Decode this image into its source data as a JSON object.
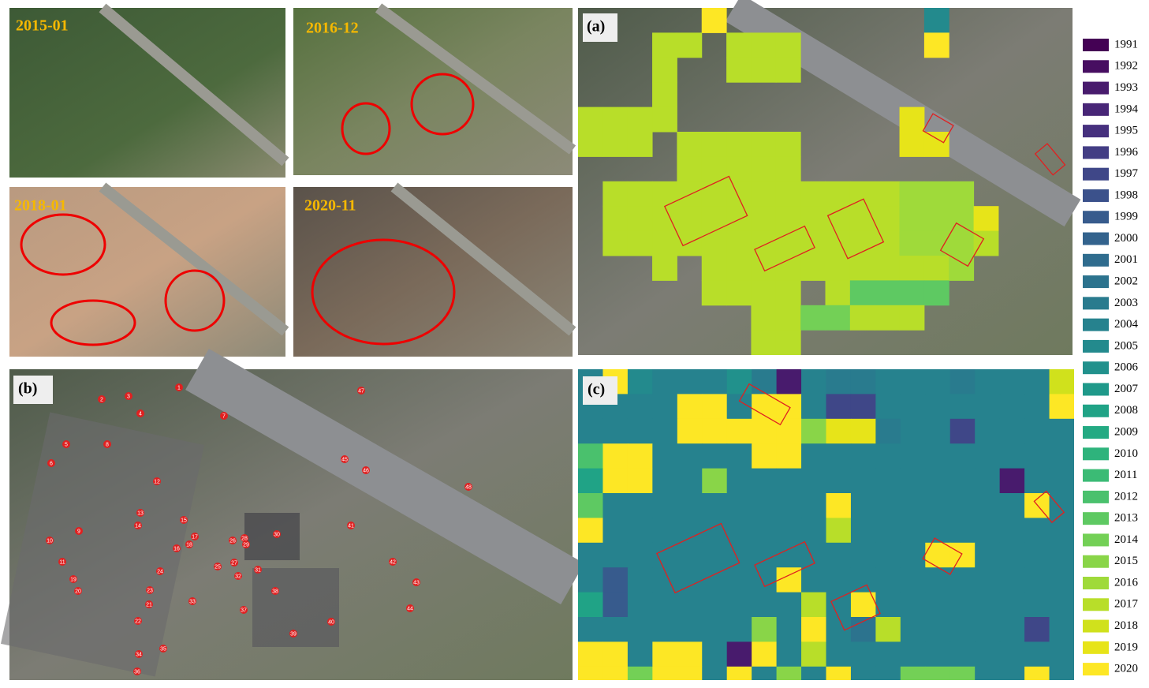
{
  "photos": [
    {
      "label": "2015-01"
    },
    {
      "label": "2016-12"
    },
    {
      "label": "2018-01"
    },
    {
      "label": "2020-11"
    }
  ],
  "panels": {
    "a": {
      "label": "(a)",
      "grid": [
        [
          null,
          null,
          null,
          null,
          null,
          2020,
          null,
          null,
          null,
          null,
          null,
          null,
          null,
          null,
          2005,
          null,
          null,
          null,
          null,
          null
        ],
        [
          null,
          null,
          null,
          2017,
          2017,
          null,
          2017,
          2017,
          2017,
          null,
          null,
          null,
          null,
          null,
          2020,
          null,
          null,
          null,
          null,
          null
        ],
        [
          null,
          null,
          null,
          2017,
          null,
          null,
          2017,
          2017,
          2017,
          null,
          null,
          null,
          null,
          null,
          null,
          null,
          null,
          null,
          null,
          null
        ],
        [
          null,
          null,
          null,
          2017,
          null,
          null,
          null,
          null,
          null,
          null,
          null,
          null,
          null,
          null,
          null,
          null,
          null,
          null,
          null,
          null
        ],
        [
          2017,
          2017,
          2017,
          2017,
          null,
          null,
          null,
          null,
          null,
          null,
          null,
          null,
          null,
          2019,
          null,
          null,
          null,
          null,
          null,
          null
        ],
        [
          2017,
          2017,
          2017,
          null,
          2017,
          2017,
          2017,
          2017,
          2017,
          null,
          null,
          null,
          null,
          2019,
          2019,
          null,
          null,
          null,
          null,
          null
        ],
        [
          null,
          null,
          null,
          null,
          2017,
          2017,
          2017,
          2017,
          2017,
          null,
          null,
          null,
          null,
          null,
          null,
          null,
          null,
          null,
          null,
          null
        ],
        [
          null,
          2017,
          2017,
          2017,
          2017,
          2017,
          2017,
          2017,
          2017,
          2017,
          2017,
          2017,
          2017,
          2016,
          2016,
          2016,
          null,
          null,
          null,
          null
        ],
        [
          null,
          2017,
          2017,
          2017,
          2017,
          2017,
          2017,
          2017,
          2017,
          2017,
          2017,
          2017,
          2017,
          2016,
          2016,
          2016,
          2019,
          null,
          null,
          null
        ],
        [
          null,
          2017,
          2017,
          2017,
          2017,
          2017,
          2017,
          2017,
          2017,
          2017,
          2017,
          2017,
          2017,
          2016,
          2016,
          2016,
          2017,
          null,
          null,
          null
        ],
        [
          null,
          null,
          null,
          2017,
          null,
          2017,
          2017,
          2017,
          2017,
          2017,
          2017,
          2017,
          2017,
          2017,
          2017,
          2016,
          null,
          null,
          null,
          null
        ],
        [
          null,
          null,
          null,
          null,
          null,
          2017,
          2017,
          2017,
          2017,
          null,
          2017,
          2013,
          2013,
          2013,
          2013,
          null,
          null,
          null,
          null,
          null
        ],
        [
          null,
          null,
          null,
          null,
          null,
          null,
          null,
          2017,
          2017,
          2014,
          2014,
          2017,
          2017,
          2017,
          null,
          null,
          null,
          null,
          null,
          null
        ],
        [
          null,
          null,
          null,
          null,
          null,
          null,
          null,
          2017,
          2017,
          null,
          null,
          null,
          null,
          null,
          null,
          null,
          null,
          null,
          null,
          null
        ]
      ]
    },
    "b": {
      "label": "(b)",
      "markers": [
        "1",
        "2",
        "3",
        "4",
        "5",
        "6",
        "7",
        "8",
        "9",
        "10",
        "11",
        "12",
        "13",
        "14",
        "15",
        "16",
        "17",
        "18",
        "19",
        "20",
        "21",
        "22",
        "23",
        "24",
        "25",
        "26",
        "27",
        "28",
        "29",
        "30",
        "31",
        "32",
        "33",
        "34",
        "35",
        "36",
        "37",
        "38",
        "39",
        "40",
        "41",
        "42",
        "43",
        "44",
        "45",
        "46",
        "47",
        "48"
      ]
    },
    "c": {
      "label": "(c)",
      "grid": [
        [
          2004,
          2020,
          2005,
          2004,
          2004,
          2004,
          2006,
          2003,
          1993,
          2004,
          2003,
          2003,
          2004,
          2004,
          2004,
          2003,
          2004,
          2004,
          2004,
          2018
        ],
        [
          2004,
          2004,
          2004,
          2004,
          2020,
          2020,
          2004,
          2020,
          2020,
          2004,
          1997,
          1997,
          2004,
          2004,
          2004,
          2004,
          2004,
          2004,
          2004,
          2020
        ],
        [
          2004,
          2004,
          2004,
          2004,
          2020,
          2020,
          2020,
          2020,
          2020,
          2015,
          2019,
          2019,
          2003,
          2004,
          2004,
          1997,
          2004,
          2004,
          2004,
          2004
        ],
        [
          2012,
          2020,
          2020,
          2004,
          2004,
          2004,
          2004,
          2020,
          2020,
          2004,
          2004,
          2004,
          2004,
          2004,
          2004,
          2004,
          2004,
          2004,
          2004,
          2004
        ],
        [
          2008,
          2020,
          2020,
          2004,
          2004,
          2015,
          2004,
          2004,
          2004,
          2004,
          2004,
          2004,
          2004,
          2004,
          2004,
          2004,
          2004,
          1993,
          2004,
          2004
        ],
        [
          2013,
          2004,
          2004,
          2004,
          2004,
          2004,
          2004,
          2004,
          2004,
          2004,
          2020,
          2004,
          2004,
          2004,
          2004,
          2004,
          2004,
          2004,
          2020,
          2004
        ],
        [
          2020,
          2004,
          2004,
          2004,
          2004,
          2004,
          2004,
          2004,
          2004,
          2004,
          2017,
          2004,
          2004,
          2004,
          2004,
          2004,
          2004,
          2004,
          2004,
          2004
        ],
        [
          2004,
          2004,
          2004,
          2004,
          2004,
          2004,
          2004,
          2004,
          2004,
          2004,
          2004,
          2004,
          2004,
          2004,
          2020,
          2020,
          2004,
          2004,
          2004,
          2004
        ],
        [
          2004,
          1999,
          2004,
          2004,
          2004,
          2004,
          2004,
          2004,
          2020,
          2004,
          2004,
          2004,
          2004,
          2004,
          2004,
          2004,
          2004,
          2004,
          2004,
          2004
        ],
        [
          2008,
          1999,
          2004,
          2004,
          2004,
          2004,
          2004,
          2004,
          2004,
          2017,
          2004,
          2020,
          2004,
          2004,
          2004,
          2004,
          2004,
          2004,
          2004,
          2004
        ],
        [
          2004,
          2004,
          2004,
          2004,
          2004,
          2004,
          2004,
          2015,
          2004,
          2020,
          2004,
          2002,
          2017,
          2004,
          2004,
          2004,
          2004,
          2004,
          1997,
          2004
        ],
        [
          2020,
          2020,
          2004,
          2020,
          2020,
          2004,
          1993,
          2020,
          2004,
          2017,
          2004,
          2004,
          2004,
          2004,
          2004,
          2004,
          2004,
          2004,
          2004,
          2004
        ],
        [
          2020,
          2020,
          2014,
          2020,
          2020,
          2004,
          2020,
          2004,
          2015,
          2004,
          2020,
          2004,
          2004,
          2014,
          2014,
          2014,
          2004,
          2004,
          2020,
          2004
        ]
      ]
    }
  },
  "legend": [
    {
      "label": "1991",
      "color": "#440154"
    },
    {
      "label": "1992",
      "color": "#470e61"
    },
    {
      "label": "1993",
      "color": "#481b6d"
    },
    {
      "label": "1994",
      "color": "#482677"
    },
    {
      "label": "1995",
      "color": "#46307e"
    },
    {
      "label": "1996",
      "color": "#433d84"
    },
    {
      "label": "1997",
      "color": "#3f4788"
    },
    {
      "label": "1998",
      "color": "#3b518b"
    },
    {
      "label": "1999",
      "color": "#375b8d"
    },
    {
      "label": "2000",
      "color": "#33638d"
    },
    {
      "label": "2001",
      "color": "#2f6c8e"
    },
    {
      "label": "2002",
      "color": "#2c738e"
    },
    {
      "label": "2003",
      "color": "#297b8e"
    },
    {
      "label": "2004",
      "color": "#26828e"
    },
    {
      "label": "2005",
      "color": "#238a8d"
    },
    {
      "label": "2006",
      "color": "#21918c"
    },
    {
      "label": "2007",
      "color": "#1f998a"
    },
    {
      "label": "2008",
      "color": "#20a386"
    },
    {
      "label": "2009",
      "color": "#24aa83"
    },
    {
      "label": "2010",
      "color": "#2eb37c"
    },
    {
      "label": "2011",
      "color": "#3bbb75"
    },
    {
      "label": "2012",
      "color": "#4ac16d"
    },
    {
      "label": "2013",
      "color": "#5ec962"
    },
    {
      "label": "2014",
      "color": "#73d056"
    },
    {
      "label": "2015",
      "color": "#89d548"
    },
    {
      "label": "2016",
      "color": "#9fda3a"
    },
    {
      "label": "2017",
      "color": "#b8de29"
    },
    {
      "label": "2018",
      "color": "#d0e11c"
    },
    {
      "label": "2019",
      "color": "#e7e419"
    },
    {
      "label": "2020",
      "color": "#fde725"
    }
  ]
}
